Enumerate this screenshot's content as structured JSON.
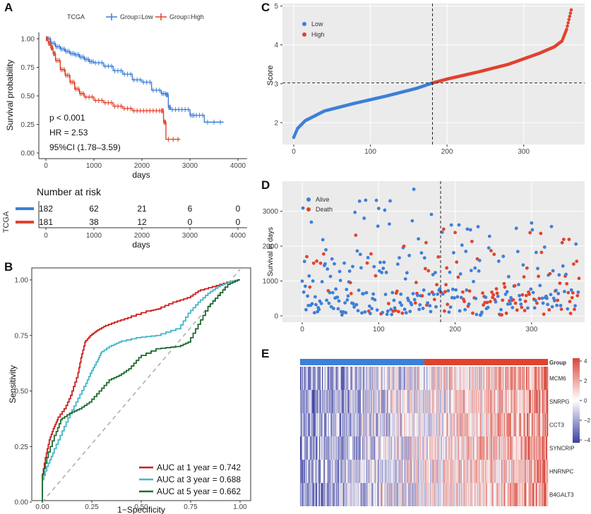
{
  "colors": {
    "blue": "#3d7fd9",
    "red": "#e0432e",
    "cyan": "#43b6c9",
    "green": "#1e6b2f",
    "panel_bg": "#ebebeb",
    "heat_low": "#3b3fa0",
    "heat_high": "#d9473c"
  },
  "chart_data": [
    {
      "id": "A",
      "type": "line",
      "panel_label": "A",
      "legend_title": "TCGA",
      "legend": [
        "Group=Low",
        "Group=High"
      ],
      "xlabel": "days",
      "ylabel": "Survival probability",
      "xlim": [
        0,
        4000
      ],
      "ylim": [
        0,
        1
      ],
      "xticks": [
        "0",
        "1000",
        "2000",
        "3000",
        "4000"
      ],
      "yticks": [
        "0.00",
        "0.25",
        "0.50",
        "0.75",
        "1.00"
      ],
      "annotations": [
        "p < 0.001",
        "HR = 2.53",
        "95%CI (1.78–3.59)"
      ],
      "series": [
        {
          "name": "Group=Low",
          "color": "blue",
          "x": [
            0,
            100,
            200,
            300,
            400,
            500,
            600,
            700,
            800,
            900,
            1000,
            1200,
            1400,
            1600,
            1800,
            2000,
            2200,
            2400,
            2500,
            2550,
            2600,
            2800,
            3000,
            3100,
            3300,
            3700
          ],
          "y": [
            1.0,
            0.96,
            0.93,
            0.91,
            0.89,
            0.87,
            0.86,
            0.84,
            0.82,
            0.8,
            0.79,
            0.76,
            0.72,
            0.69,
            0.64,
            0.62,
            0.55,
            0.52,
            0.51,
            0.4,
            0.38,
            0.38,
            0.33,
            0.33,
            0.27,
            0.27
          ]
        },
        {
          "name": "Group=High",
          "color": "red",
          "x": [
            0,
            50,
            100,
            150,
            200,
            300,
            400,
            500,
            600,
            700,
            800,
            1000,
            1200,
            1400,
            1600,
            1800,
            2000,
            2200,
            2400,
            2450,
            2500,
            2800
          ],
          "y": [
            1.0,
            0.96,
            0.92,
            0.87,
            0.81,
            0.73,
            0.68,
            0.62,
            0.56,
            0.52,
            0.49,
            0.46,
            0.44,
            0.41,
            0.39,
            0.37,
            0.37,
            0.37,
            0.37,
            0.27,
            0.12,
            0.12
          ]
        }
      ],
      "risk_table": {
        "title": "Number at risk",
        "row_label": "TCGA",
        "times": [
          0,
          1000,
          2000,
          3000,
          4000
        ],
        "rows": [
          {
            "name": "Low",
            "color": "blue",
            "values": [
              "182",
              "62",
              "21",
              "6",
              "0"
            ]
          },
          {
            "name": "High",
            "color": "red",
            "values": [
              "181",
              "38",
              "12",
              "0",
              "0"
            ]
          }
        ],
        "xlabel": "days",
        "xticks": [
          "0",
          "1000",
          "2000",
          "3000",
          "4000"
        ]
      }
    },
    {
      "id": "B",
      "type": "line",
      "panel_label": "B",
      "xlabel": "1−Specificity",
      "ylabel": "Sensitivity",
      "xlim": [
        0,
        1
      ],
      "ylim": [
        0,
        1
      ],
      "xticks": [
        "0.00",
        "0.25",
        "0.50",
        "0.75",
        "1.00"
      ],
      "yticks": [
        "0.00",
        "0.25",
        "0.50",
        "0.75",
        "1.00"
      ],
      "series": [
        {
          "name": "AUC at 1 year = 0.742",
          "color": "red",
          "x": [
            0,
            0,
            0.02,
            0.04,
            0.06,
            0.08,
            0.12,
            0.15,
            0.18,
            0.2,
            0.22,
            0.25,
            0.28,
            0.32,
            0.38,
            0.45,
            0.55,
            0.6,
            0.68,
            0.75,
            0.8,
            0.88,
            0.95,
            1.0
          ],
          "y": [
            0,
            0.1,
            0.2,
            0.28,
            0.33,
            0.37,
            0.42,
            0.48,
            0.56,
            0.65,
            0.72,
            0.75,
            0.77,
            0.79,
            0.81,
            0.83,
            0.86,
            0.87,
            0.9,
            0.92,
            0.95,
            0.97,
            0.99,
            1.0
          ]
        },
        {
          "name": "AUC at 3 year = 0.688",
          "color": "cyan",
          "x": [
            0,
            0,
            0.03,
            0.06,
            0.1,
            0.14,
            0.18,
            0.22,
            0.25,
            0.28,
            0.3,
            0.35,
            0.4,
            0.5,
            0.6,
            0.7,
            0.75,
            0.8,
            0.85,
            0.9,
            0.95,
            1.0
          ],
          "y": [
            0,
            0.08,
            0.16,
            0.22,
            0.3,
            0.38,
            0.45,
            0.52,
            0.58,
            0.63,
            0.67,
            0.7,
            0.72,
            0.74,
            0.75,
            0.78,
            0.85,
            0.9,
            0.94,
            0.97,
            0.99,
            1.0
          ]
        },
        {
          "name": "AUC at 5 year = 0.662",
          "color": "green",
          "x": [
            0,
            0,
            0.03,
            0.07,
            0.1,
            0.15,
            0.2,
            0.25,
            0.3,
            0.35,
            0.4,
            0.45,
            0.5,
            0.6,
            0.7,
            0.75,
            0.8,
            0.85,
            0.9,
            0.95,
            1.0
          ],
          "y": [
            0,
            0.1,
            0.2,
            0.3,
            0.37,
            0.4,
            0.42,
            0.45,
            0.5,
            0.55,
            0.57,
            0.6,
            0.65,
            0.69,
            0.7,
            0.72,
            0.8,
            0.88,
            0.93,
            0.98,
            1.0
          ]
        }
      ]
    },
    {
      "id": "C",
      "type": "scatter",
      "panel_label": "C",
      "ylabel": "Score",
      "xlim": [
        -10,
        365
      ],
      "ylim": [
        1.5,
        5
      ],
      "xticks": [
        "0",
        "100",
        "200",
        "300"
      ],
      "yticks": [
        "2",
        "3",
        "4",
        "5"
      ],
      "legend": [
        "Low",
        "High"
      ],
      "cutoff_x": 181,
      "cutoff_y": 3.02,
      "n_low": 182,
      "n_high": 181,
      "curve": {
        "x": [
          0,
          5,
          15,
          40,
          80,
          120,
          160,
          181,
          200,
          240,
          280,
          320,
          340,
          350,
          356,
          362
        ],
        "y": [
          1.62,
          1.85,
          2.05,
          2.3,
          2.5,
          2.68,
          2.88,
          3.02,
          3.12,
          3.3,
          3.5,
          3.78,
          3.95,
          4.1,
          4.4,
          4.9
        ]
      }
    },
    {
      "id": "D",
      "type": "scatter",
      "panel_label": "D",
      "ylabel": "Survival in days",
      "xlim": [
        -10,
        365
      ],
      "ylim": [
        -150,
        3800
      ],
      "xticks": [
        "0",
        "100",
        "200",
        "300"
      ],
      "yticks": [
        "0",
        "1000",
        "2000",
        "3000"
      ],
      "legend": [
        "Alive",
        "Death"
      ],
      "cutoff_x": 181,
      "n_points": 363
    },
    {
      "id": "E",
      "type": "heatmap",
      "panel_label": "E",
      "annotation_label": "Group",
      "genes": [
        "MCM6",
        "SNRPG",
        "CCT3",
        "SYNCRIP",
        "HNRNPC",
        "B4GALT3"
      ],
      "scale_ticks": [
        "4",
        "2",
        "0",
        "−2",
        "−4"
      ],
      "scale_min": -4,
      "scale_max": 4,
      "n_low": 182,
      "n_high": 181
    }
  ]
}
